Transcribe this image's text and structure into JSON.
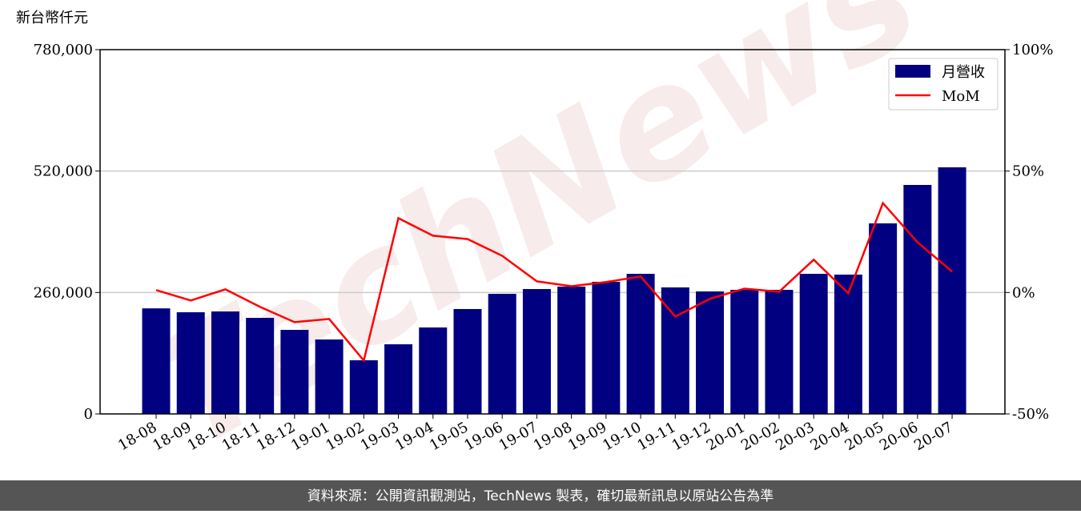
{
  "chart_data": {
    "type": "bar-line",
    "ylabel": "新台幣仟元",
    "watermark": "TechNews",
    "source": "資料來源：公開資訊觀測站，TechNews 製表，確切最新訊息以原站公告為準",
    "categories": [
      "18-08",
      "18-09",
      "18-10",
      "18-11",
      "18-12",
      "19-01",
      "19-02",
      "19-03",
      "19-04",
      "19-05",
      "19-06",
      "19-07",
      "19-08",
      "19-09",
      "19-10",
      "19-11",
      "19-12",
      "20-01",
      "20-02",
      "20-03",
      "20-04",
      "20-05",
      "20-06",
      "20-07"
    ],
    "series": [
      {
        "name": "月營收",
        "color": "#000080",
        "values": [
          226000,
          217700,
          219400,
          205700,
          180000,
          159400,
          114900,
          149100,
          185100,
          224600,
          257100,
          267400,
          272600,
          282900,
          300000,
          270900,
          262300,
          265700,
          265700,
          300000,
          298300,
          408000,
          490300,
          528000
        ]
      },
      {
        "name": "MoM",
        "color": "#ff0000",
        "axis": "y2",
        "values": [
          1.0,
          -3.3,
          1.3,
          -5.9,
          -12.2,
          -10.9,
          -28.0,
          30.6,
          23.4,
          22.0,
          15.1,
          4.6,
          2.6,
          4.3,
          6.6,
          -9.9,
          -2.6,
          1.6,
          0.3,
          13.5,
          -0.3,
          36.8,
          20.7,
          8.6
        ]
      }
    ],
    "ylim": [
      0,
      780000
    ],
    "yticks": [
      0,
      {
        "value": 260000,
        "label": "260,000"
      },
      {
        "value": 520000,
        "label": "520,000"
      },
      {
        "value": 780000,
        "label": "780,000"
      }
    ],
    "y2lim": [
      -50,
      100
    ],
    "y2ticks": [
      {
        "value": -50,
        "label": "-50%"
      },
      {
        "value": 0,
        "label": "0%"
      },
      {
        "value": 50,
        "label": "50%"
      },
      {
        "value": 100,
        "label": "100%"
      }
    ],
    "grid": true,
    "legend": "upper right"
  }
}
